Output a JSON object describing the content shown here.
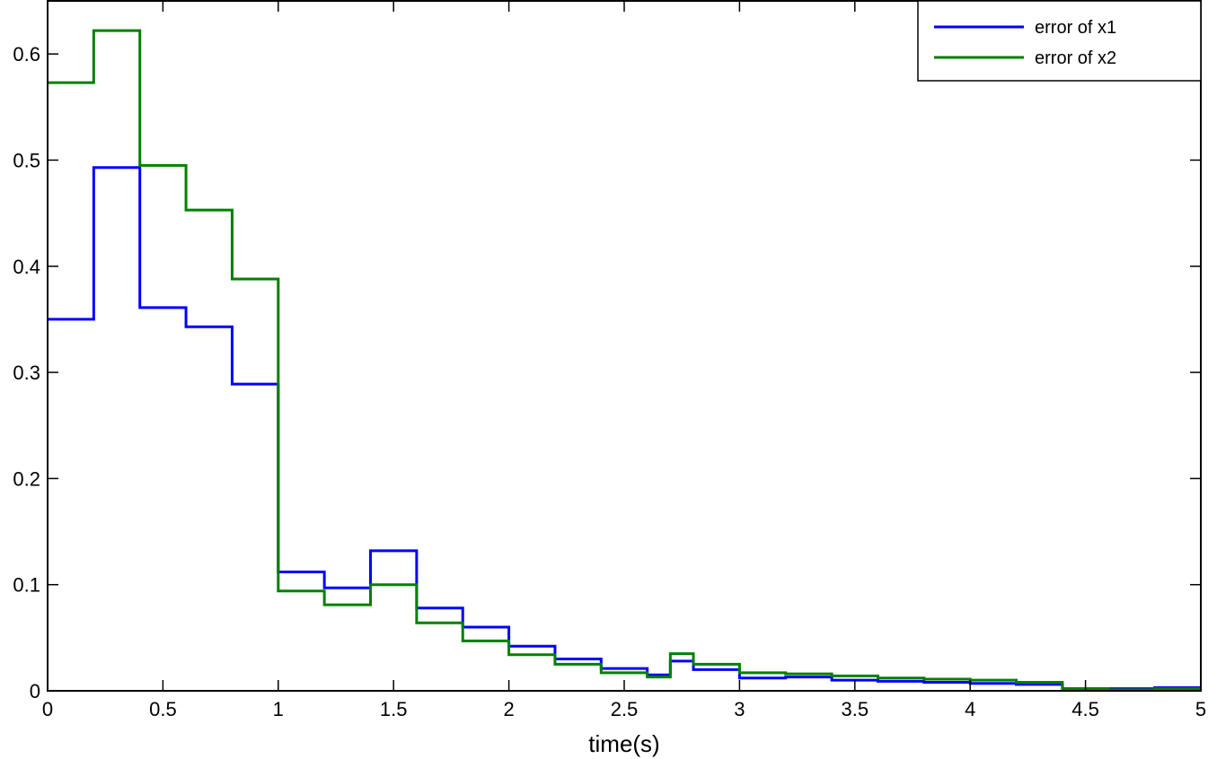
{
  "chart_data": {
    "type": "line",
    "step": true,
    "title": "",
    "xlabel": "time(s)",
    "ylabel": "",
    "xlim": [
      0,
      5
    ],
    "ylim": [
      0,
      0.65
    ],
    "grid": false,
    "legend_position": "top-right",
    "xticks": [
      "0",
      "0.5",
      "1",
      "1.5",
      "2",
      "2.5",
      "3",
      "3.5",
      "4",
      "4.5",
      "5"
    ],
    "yticks": [
      "0",
      "0.1",
      "0.2",
      "0.3",
      "0.4",
      "0.5",
      "0.6"
    ],
    "x_edges": [
      0,
      0.2,
      0.4,
      0.6,
      0.8,
      1.0,
      1.2,
      1.4,
      1.6,
      1.8,
      2.0,
      2.2,
      2.4,
      2.6,
      2.7,
      2.8,
      3.0,
      3.2,
      3.4,
      3.6,
      3.8,
      4.0,
      4.2,
      4.4,
      4.6,
      4.8,
      5.0
    ],
    "series": [
      {
        "name": "error of x1",
        "color": "#0000ff",
        "values": [
          0.35,
          0.493,
          0.361,
          0.343,
          0.289,
          0.112,
          0.097,
          0.132,
          0.078,
          0.06,
          0.042,
          0.03,
          0.021,
          0.015,
          0.028,
          0.02,
          0.012,
          0.013,
          0.01,
          0.009,
          0.008,
          0.007,
          0.006,
          0.002,
          0.002,
          0.003
        ]
      },
      {
        "name": "error of x2",
        "color": "#008000",
        "values": [
          0.573,
          0.622,
          0.495,
          0.453,
          0.388,
          0.094,
          0.081,
          0.1,
          0.064,
          0.047,
          0.034,
          0.025,
          0.017,
          0.013,
          0.035,
          0.025,
          0.017,
          0.016,
          0.014,
          0.012,
          0.011,
          0.01,
          0.008,
          0.002,
          0.001,
          0.002
        ]
      }
    ]
  }
}
